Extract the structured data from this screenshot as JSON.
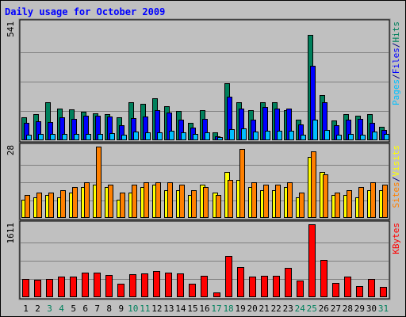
{
  "chart_data": {
    "type": "bar",
    "title": "Daily usage for October 2009",
    "categories": [
      "1",
      "2",
      "3",
      "4",
      "5",
      "6",
      "7",
      "8",
      "9",
      "10",
      "11",
      "12",
      "13",
      "14",
      "15",
      "16",
      "17",
      "18",
      "19",
      "20",
      "21",
      "22",
      "23",
      "24",
      "25",
      "26",
      "27",
      "28",
      "29",
      "30",
      "31"
    ],
    "weekend_days": [
      3,
      4,
      10,
      11,
      17,
      18,
      24,
      25,
      31
    ],
    "panels": [
      {
        "id": "hits-files-pages",
        "ymax": 541,
        "ymax_label": "541",
        "legend": [
          "Pages",
          "/",
          "Files",
          "/",
          "Hits"
        ],
        "legend_colors": [
          "#00c0ff",
          "#000080",
          "#0000ff",
          "#000080",
          "#00805c"
        ],
        "series": [
          {
            "name": "Hits",
            "color": "#00805c",
            "values": [
              105,
              120,
              175,
              148,
              142,
              130,
              125,
              122,
              105,
              175,
              168,
              192,
              158,
              135,
              82,
              140,
              35,
              265,
              175,
              140,
              175,
              175,
              140,
              95,
              485,
              208,
              92,
              122,
              112,
              120,
              62
            ]
          },
          {
            "name": "Files",
            "color": "#0000ff",
            "values": [
              82,
              88,
              85,
              105,
              98,
              115,
              112,
              108,
              68,
              102,
              108,
              140,
              128,
              95,
              60,
              100,
              20,
              200,
              148,
              95,
              155,
              148,
              148,
              72,
              345,
              175,
              68,
              95,
              100,
              80,
              48
            ]
          },
          {
            "name": "Pages",
            "color": "#00c0ff",
            "values": [
              25,
              28,
              30,
              30,
              30,
              30,
              30,
              32,
              25,
              40,
              38,
              38,
              45,
              35,
              30,
              35,
              15,
              50,
              55,
              42,
              45,
              45,
              45,
              25,
              95,
              48,
              25,
              28,
              25,
              40,
              28
            ]
          }
        ]
      },
      {
        "id": "sites-visits",
        "ymax": 28,
        "ymax_label": "28",
        "legend": [
          "Sites",
          "/",
          "Visits"
        ],
        "legend_colors": [
          "#ff8000",
          "#000080",
          "#ffff00"
        ],
        "series": [
          {
            "name": "Visits",
            "color": "#ffff00",
            "values": [
              7,
              8,
              9,
              8,
              10,
              12,
              13,
              12,
              7,
              10,
              12,
              13,
              11,
              11,
              9,
              13,
              10,
              18,
              15,
              12,
              11,
              11,
              12,
              8,
              24,
              18,
              9,
              9,
              8,
              11,
              11
            ]
          },
          {
            "name": "Sites",
            "color": "#ff8000",
            "values": [
              9,
              10,
              10,
              11,
              12,
              14,
              28,
              13,
              10,
              13,
              14,
              14,
              14,
              13,
              11,
              12,
              9,
              15,
              27,
              14,
              13,
              13,
              14,
              10,
              26,
              17,
              10,
              11,
              12,
              14,
              13
            ]
          }
        ]
      },
      {
        "id": "kbytes",
        "ymax": 1611,
        "ymax_label": "1611",
        "legend": [
          "KBytes"
        ],
        "legend_colors": [
          "#ff0000"
        ],
        "series": [
          {
            "name": "KBytes",
            "color": "#ff0000",
            "values": [
              400,
              390,
              400,
              450,
              450,
              550,
              550,
              490,
              300,
              500,
              520,
              570,
              550,
              530,
              290,
              480,
              100,
              910,
              660,
              460,
              480,
              480,
              650,
              360,
              1611,
              820,
              310,
              460,
              250,
              400,
              230
            ]
          }
        ]
      }
    ]
  }
}
